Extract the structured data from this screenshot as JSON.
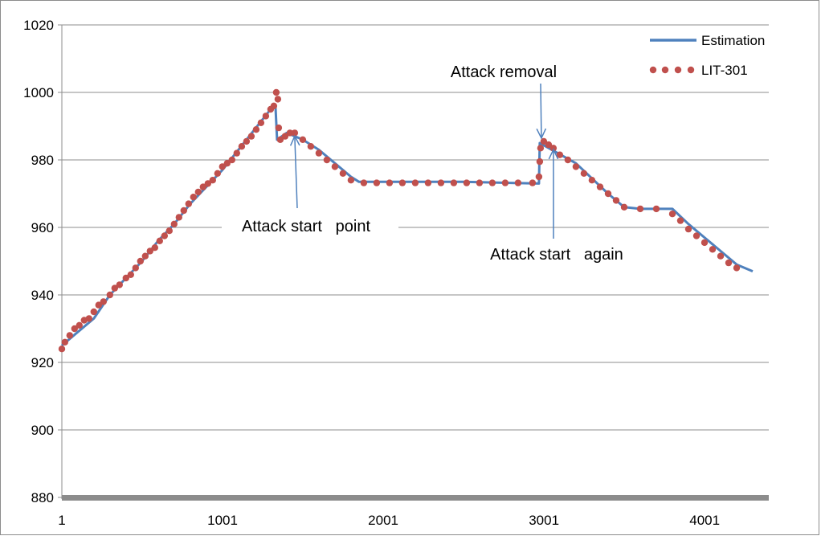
{
  "chart_data": {
    "type": "line",
    "title": "",
    "xlabel": "",
    "ylabel": "",
    "xlim": [
      1,
      4400
    ],
    "ylim": [
      880,
      1020
    ],
    "y_ticks": [
      880,
      900,
      920,
      940,
      960,
      980,
      1000,
      1020
    ],
    "x_tick_labels": [
      "1",
      "1001",
      "2001",
      "3001",
      "4001"
    ],
    "x_tick_values": [
      1,
      1001,
      2001,
      3001,
      4001
    ],
    "grid": "horizontal",
    "legend_placement": "top-right",
    "series": [
      {
        "name": "Estimation",
        "style": "solid-line",
        "color": "#4f81bd",
        "points": [
          [
            1,
            925
          ],
          [
            100,
            929
          ],
          [
            200,
            933
          ],
          [
            300,
            940
          ],
          [
            400,
            945
          ],
          [
            500,
            950
          ],
          [
            600,
            956
          ],
          [
            700,
            961
          ],
          [
            800,
            967
          ],
          [
            900,
            972
          ],
          [
            1000,
            977
          ],
          [
            1100,
            983
          ],
          [
            1200,
            989
          ],
          [
            1300,
            995
          ],
          [
            1330,
            996
          ],
          [
            1340,
            986
          ],
          [
            1400,
            988
          ],
          [
            1500,
            986
          ],
          [
            1600,
            983
          ],
          [
            1700,
            979
          ],
          [
            1800,
            975
          ],
          [
            1850,
            973.5
          ],
          [
            2000,
            973.5
          ],
          [
            2500,
            973.5
          ],
          [
            2970,
            973
          ],
          [
            2975,
            985
          ],
          [
            3050,
            983
          ],
          [
            3200,
            979
          ],
          [
            3400,
            970
          ],
          [
            3500,
            966
          ],
          [
            3600,
            965.5
          ],
          [
            3800,
            965.5
          ],
          [
            3900,
            961
          ],
          [
            4000,
            957
          ],
          [
            4100,
            953
          ],
          [
            4200,
            949
          ],
          [
            4300,
            947
          ]
        ]
      },
      {
        "name": "LIT-301",
        "style": "dotted",
        "color": "#c0504d",
        "points": [
          [
            1,
            924
          ],
          [
            20,
            926
          ],
          [
            50,
            928
          ],
          [
            80,
            930
          ],
          [
            110,
            931
          ],
          [
            140,
            932.5
          ],
          [
            170,
            933
          ],
          [
            200,
            935
          ],
          [
            230,
            937
          ],
          [
            260,
            938
          ],
          [
            300,
            940
          ],
          [
            330,
            942
          ],
          [
            360,
            943
          ],
          [
            400,
            945
          ],
          [
            430,
            946
          ],
          [
            460,
            948
          ],
          [
            490,
            950
          ],
          [
            520,
            951.5
          ],
          [
            550,
            953
          ],
          [
            580,
            954
          ],
          [
            610,
            956
          ],
          [
            640,
            957.5
          ],
          [
            670,
            959
          ],
          [
            700,
            961
          ],
          [
            730,
            963
          ],
          [
            760,
            965
          ],
          [
            790,
            967
          ],
          [
            820,
            969
          ],
          [
            850,
            970.5
          ],
          [
            880,
            972
          ],
          [
            910,
            973
          ],
          [
            940,
            974
          ],
          [
            970,
            976
          ],
          [
            1000,
            978
          ],
          [
            1030,
            979
          ],
          [
            1060,
            980
          ],
          [
            1090,
            982
          ],
          [
            1120,
            984
          ],
          [
            1150,
            985.5
          ],
          [
            1180,
            987
          ],
          [
            1210,
            989
          ],
          [
            1240,
            991
          ],
          [
            1270,
            993
          ],
          [
            1300,
            995
          ],
          [
            1320,
            996
          ],
          [
            1335,
            1000
          ],
          [
            1345,
            998
          ],
          [
            1350,
            989.5
          ],
          [
            1360,
            986
          ],
          [
            1390,
            987
          ],
          [
            1420,
            988
          ],
          [
            1450,
            988
          ],
          [
            1500,
            986
          ],
          [
            1550,
            984
          ],
          [
            1600,
            982
          ],
          [
            1650,
            980
          ],
          [
            1700,
            978
          ],
          [
            1750,
            976
          ],
          [
            1800,
            974
          ],
          [
            1880,
            973.2
          ],
          [
            1960,
            973.2
          ],
          [
            2040,
            973.2
          ],
          [
            2120,
            973.2
          ],
          [
            2200,
            973.2
          ],
          [
            2280,
            973.2
          ],
          [
            2360,
            973.2
          ],
          [
            2440,
            973.2
          ],
          [
            2520,
            973.2
          ],
          [
            2600,
            973.2
          ],
          [
            2680,
            973.2
          ],
          [
            2760,
            973.2
          ],
          [
            2840,
            973.2
          ],
          [
            2930,
            973.2
          ],
          [
            2970,
            975
          ],
          [
            2975,
            979.5
          ],
          [
            2980,
            983.5
          ],
          [
            3000,
            985.5
          ],
          [
            3030,
            984.5
          ],
          [
            3060,
            983.5
          ],
          [
            3100,
            981.5
          ],
          [
            3150,
            980
          ],
          [
            3200,
            978
          ],
          [
            3250,
            976
          ],
          [
            3300,
            974
          ],
          [
            3350,
            972
          ],
          [
            3400,
            970
          ],
          [
            3450,
            968
          ],
          [
            3500,
            966
          ],
          [
            3600,
            965.5
          ],
          [
            3700,
            965.5
          ],
          [
            3800,
            964
          ],
          [
            3850,
            962
          ],
          [
            3900,
            959.5
          ],
          [
            3950,
            957.5
          ],
          [
            4000,
            955.5
          ],
          [
            4050,
            953.5
          ],
          [
            4100,
            951.5
          ],
          [
            4150,
            949.5
          ],
          [
            4200,
            948
          ]
        ]
      }
    ],
    "annotations": [
      {
        "text": "Attack start   point",
        "arrow_to": [
          1450,
          988
        ]
      },
      {
        "text": "Attack removal",
        "arrow_to": [
          2985,
          985.5
        ]
      },
      {
        "text": "Attack start   again",
        "arrow_to": [
          3060,
          984
        ]
      }
    ]
  }
}
